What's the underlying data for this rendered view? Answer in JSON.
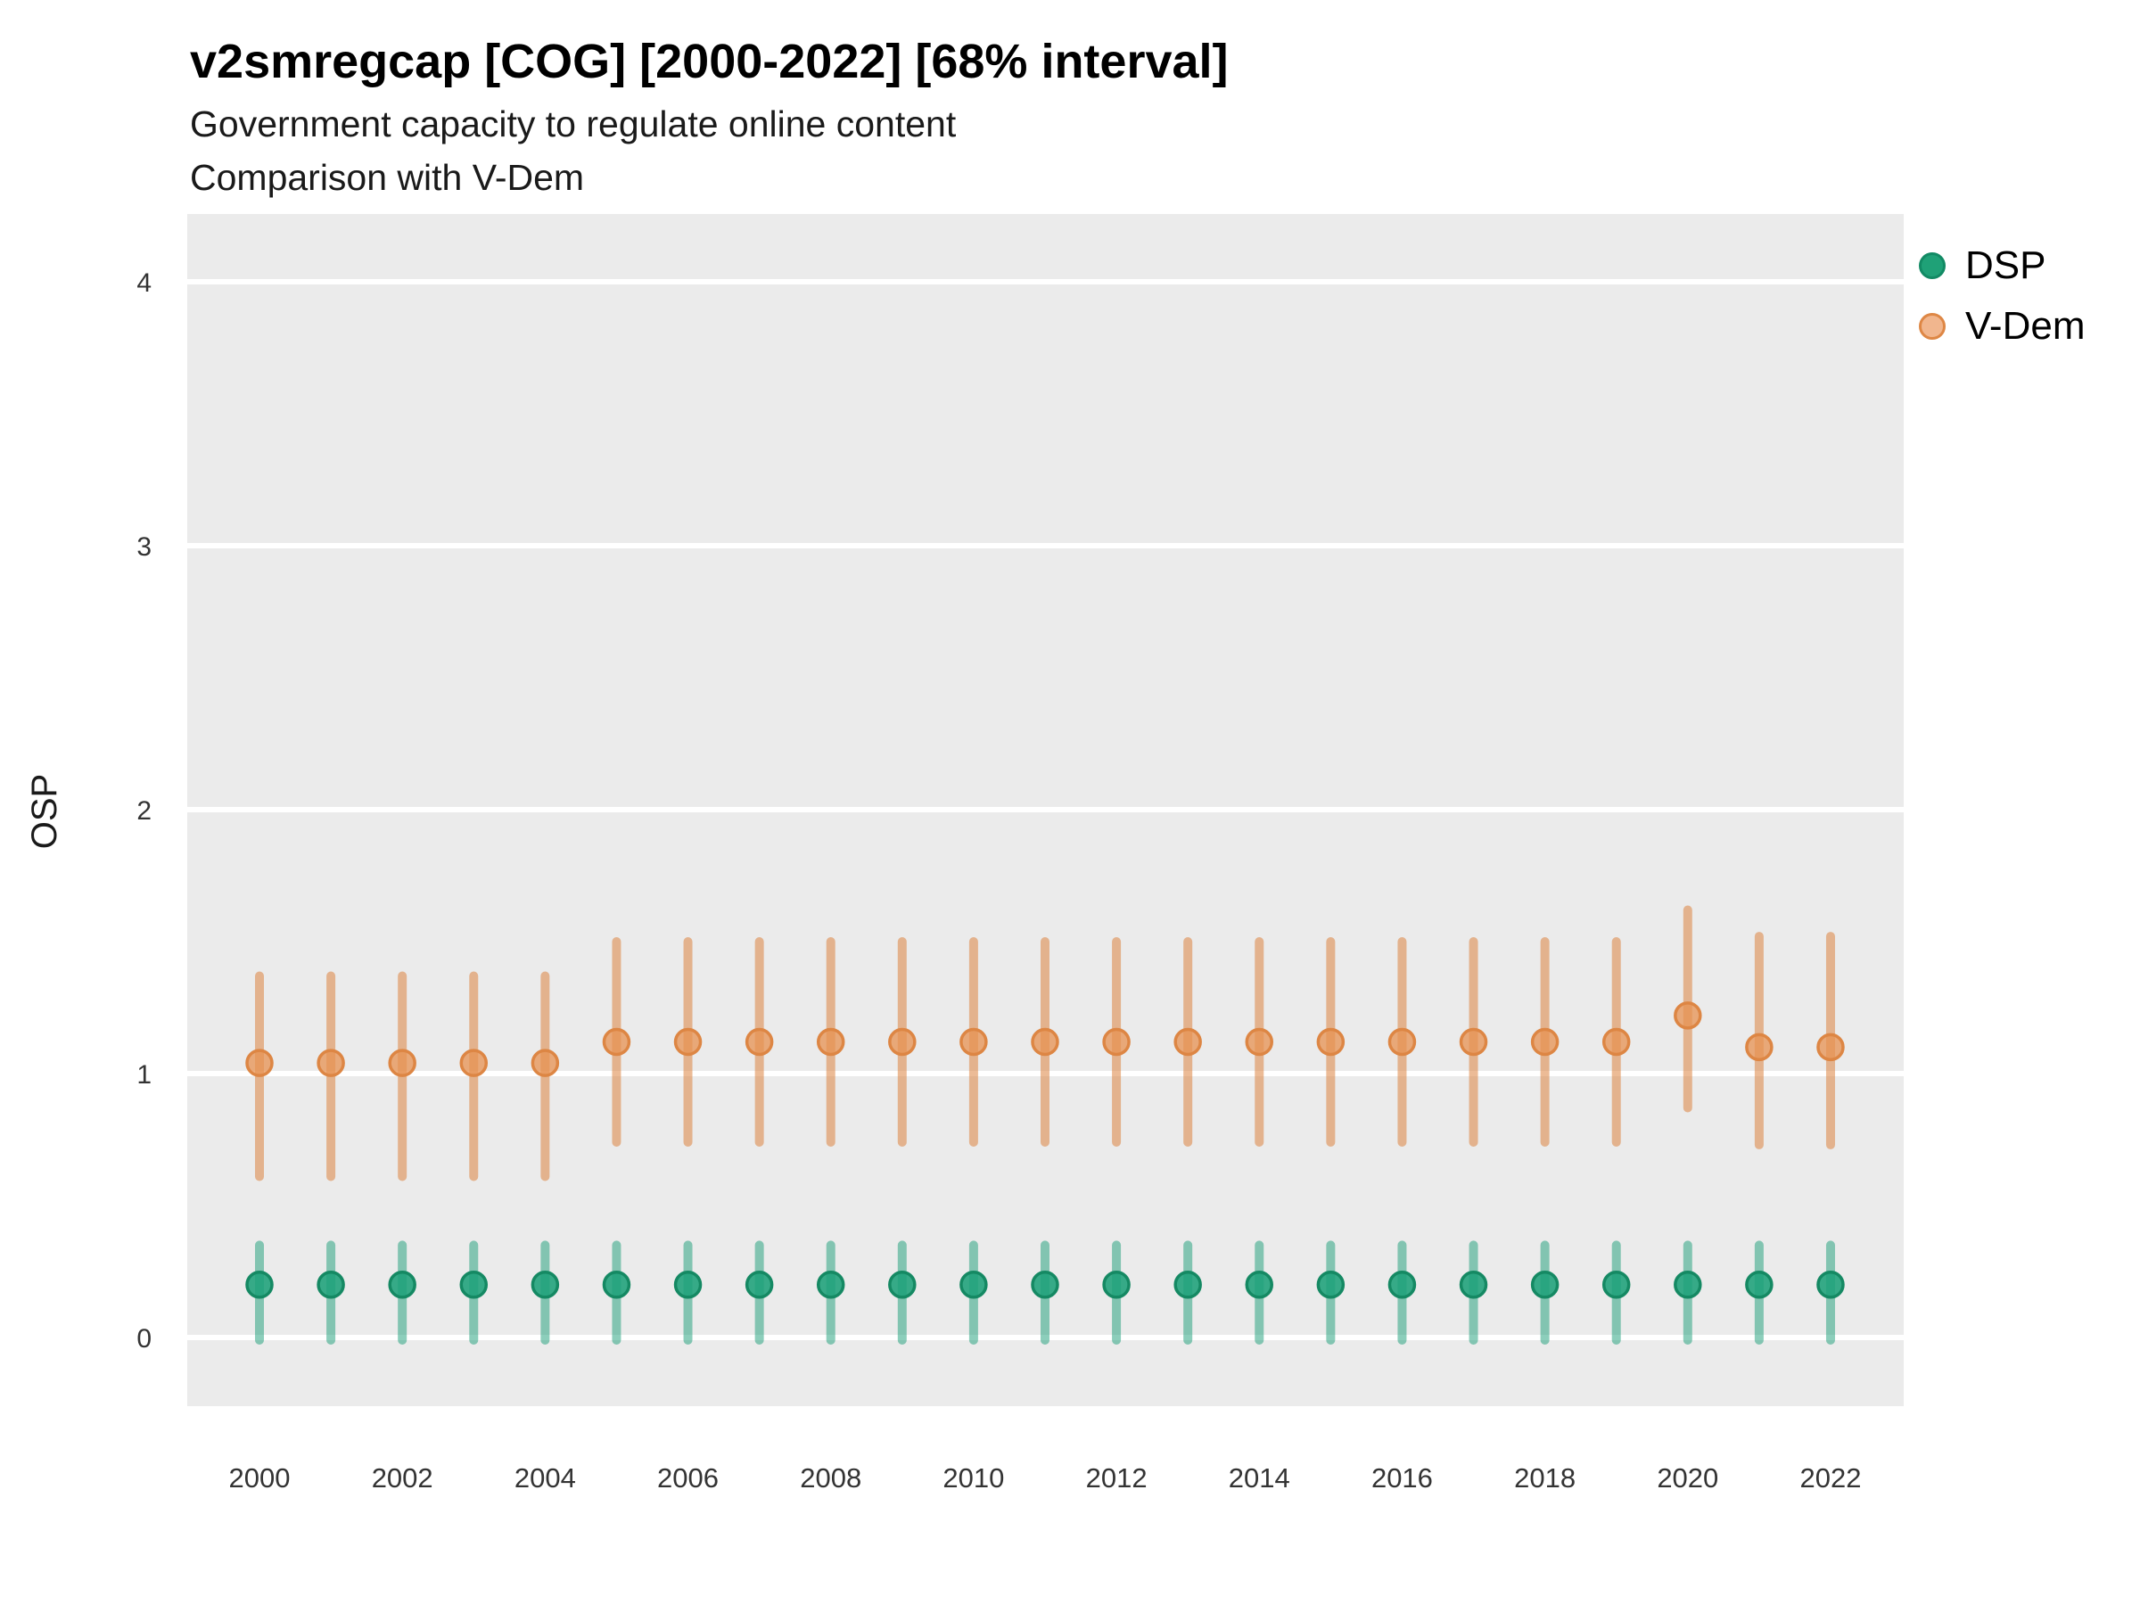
{
  "header": {
    "title": "v2smregcap [COG] [2000-2022] [68% interval]",
    "subtitle": "Government capacity to regulate online content",
    "subtitle2": "Comparison with V-Dem"
  },
  "colors": {
    "panel_bg": "#EBEBEB",
    "gridline": "#FFFFFF",
    "tick_text": "#333333",
    "axis_title_text": "#1a1a1a"
  },
  "legend": {
    "position": "right",
    "entries": [
      {
        "label": "DSP",
        "dot_fill": "#1FA177",
        "dot_stroke": "#128A64"
      },
      {
        "label": "V-Dem",
        "dot_fill": "#F1B68E",
        "dot_stroke": "#DE8745"
      }
    ]
  },
  "chart_data": {
    "type": "scatter",
    "title": "v2smregcap [COG] [2000-2022] [68% interval]",
    "subtitle": "Government capacity to regulate online content",
    "subtitle2": "Comparison with V-Dem",
    "xlabel": "",
    "ylabel": "OSP",
    "interval": "68%",
    "grid": "major horizontal white lines on gray panel",
    "legend_position": "right",
    "xlim": [
      1999,
      2023
    ],
    "ylim": [
      -0.26,
      4.27
    ],
    "y_ticks": [
      0,
      1,
      2,
      3,
      4
    ],
    "y_tick_labels": [
      "0",
      "1",
      "2",
      "3",
      "4"
    ],
    "x": [
      2000,
      2001,
      2002,
      2003,
      2004,
      2005,
      2006,
      2007,
      2008,
      2009,
      2010,
      2011,
      2012,
      2013,
      2014,
      2015,
      2016,
      2017,
      2018,
      2019,
      2020,
      2021,
      2022
    ],
    "x_tick_years": [
      2000,
      2002,
      2004,
      2006,
      2008,
      2010,
      2012,
      2014,
      2016,
      2018,
      2020,
      2022
    ],
    "x_tick_labels": [
      "2000",
      "2002",
      "2004",
      "2006",
      "2008",
      "2010",
      "2012",
      "2014",
      "2016",
      "2018",
      "2020",
      "2022"
    ],
    "series": [
      {
        "name": "V-Dem",
        "point_fill": "#E79252",
        "point_fill_opacity": 0.75,
        "point_stroke": "#DD8644",
        "bar_color": "rgba(221,132,64,0.55)",
        "values": [
          1.04,
          1.04,
          1.04,
          1.04,
          1.04,
          1.12,
          1.12,
          1.12,
          1.12,
          1.12,
          1.12,
          1.12,
          1.12,
          1.12,
          1.12,
          1.12,
          1.12,
          1.12,
          1.12,
          1.12,
          1.22,
          1.1,
          1.1
        ],
        "lo": [
          0.61,
          0.61,
          0.61,
          0.61,
          0.61,
          0.74,
          0.74,
          0.74,
          0.74,
          0.74,
          0.74,
          0.74,
          0.74,
          0.74,
          0.74,
          0.74,
          0.74,
          0.74,
          0.74,
          0.74,
          0.87,
          0.73,
          0.73
        ],
        "hi": [
          1.37,
          1.37,
          1.37,
          1.37,
          1.37,
          1.5,
          1.5,
          1.5,
          1.5,
          1.5,
          1.5,
          1.5,
          1.5,
          1.5,
          1.5,
          1.5,
          1.5,
          1.5,
          1.5,
          1.5,
          1.62,
          1.52,
          1.52
        ]
      },
      {
        "name": "DSP",
        "point_fill": "#1CA179",
        "point_fill_opacity": 0.88,
        "point_stroke": "#158963",
        "bar_color": "rgba(26,158,119,0.5)",
        "values": [
          0.2,
          0.2,
          0.2,
          0.2,
          0.2,
          0.2,
          0.2,
          0.2,
          0.2,
          0.2,
          0.2,
          0.2,
          0.2,
          0.2,
          0.2,
          0.2,
          0.2,
          0.2,
          0.2,
          0.2,
          0.2,
          0.2,
          0.2
        ],
        "lo": [
          -0.01,
          -0.01,
          -0.01,
          -0.01,
          -0.01,
          -0.01,
          -0.01,
          -0.01,
          -0.01,
          -0.01,
          -0.01,
          -0.01,
          -0.01,
          -0.01,
          -0.01,
          -0.01,
          -0.01,
          -0.01,
          -0.01,
          -0.01,
          -0.01,
          -0.01,
          -0.01
        ],
        "hi": [
          0.35,
          0.35,
          0.35,
          0.35,
          0.35,
          0.35,
          0.35,
          0.35,
          0.35,
          0.35,
          0.35,
          0.35,
          0.35,
          0.35,
          0.35,
          0.35,
          0.35,
          0.35,
          0.35,
          0.35,
          0.35,
          0.35,
          0.35
        ]
      }
    ]
  }
}
